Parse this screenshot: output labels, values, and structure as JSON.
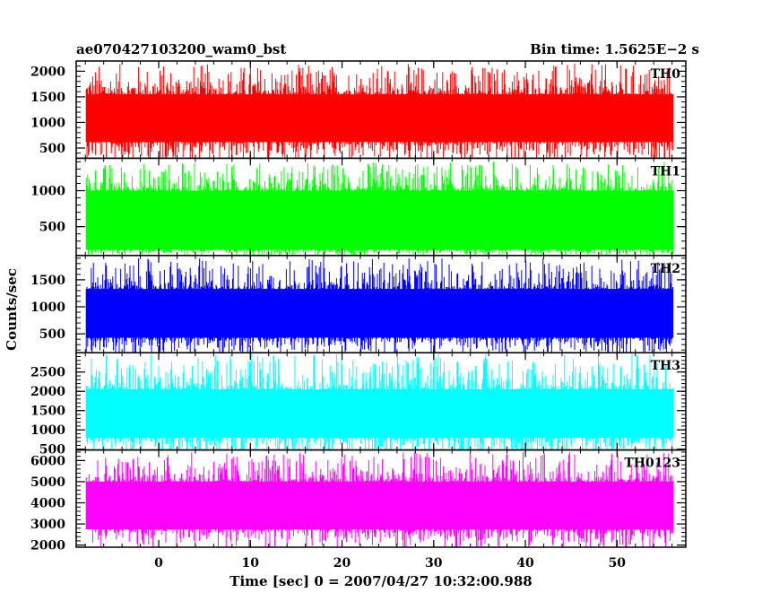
{
  "chart_data": {
    "type": "line",
    "title_left": "ae070427103200_wam0_bst",
    "title_right": "Bin time: 1.5625E−2 s",
    "xlabel": "Time [sec] 0 = 2007/04/27 10:32:00.988",
    "ylabel": "Counts/sec",
    "xlim": [
      -9,
      57.5
    ],
    "x_ticks": [
      0,
      10,
      20,
      30,
      40,
      50
    ],
    "x_range": [
      -7.9,
      56.1
    ],
    "grid": false,
    "panels": [
      {
        "name": "TH0",
        "color": "#ff0000",
        "ylim": [
          300,
          2200
        ],
        "y_ticks": [
          500,
          1000,
          1500,
          2000
        ],
        "low": 180,
        "high": 2150,
        "base_low": 620,
        "base_high": 1550,
        "line_value": 1000
      },
      {
        "name": "TH1",
        "color": "#00ff00",
        "ylim": [
          100,
          1450
        ],
        "y_ticks": [
          500,
          1000
        ],
        "low": 100,
        "high": 1400,
        "base_low": 180,
        "base_high": 1000,
        "line_value": 600
      },
      {
        "name": "TH2",
        "color": "#0000ff",
        "ylim": [
          150,
          1950
        ],
        "y_ticks": [
          500,
          1000,
          1500
        ],
        "low": 100,
        "high": 1900,
        "base_low": 430,
        "base_high": 1330,
        "line_value": 800
      },
      {
        "name": "TH3",
        "color": "#00ffff",
        "ylim": [
          480,
          3000
        ],
        "y_ticks": [
          500,
          1000,
          1500,
          2000,
          2500
        ],
        "low": 300,
        "high": 3000,
        "base_low": 800,
        "base_high": 2050,
        "line_value": 1400
      },
      {
        "name": "TH0123",
        "color": "#ff00ff",
        "ylim": [
          1900,
          6500
        ],
        "y_ticks": [
          2000,
          3000,
          4000,
          5000,
          6000
        ],
        "low": 1800,
        "high": 6400,
        "base_low": 2750,
        "base_high": 5000,
        "line_value": 3800
      }
    ]
  }
}
